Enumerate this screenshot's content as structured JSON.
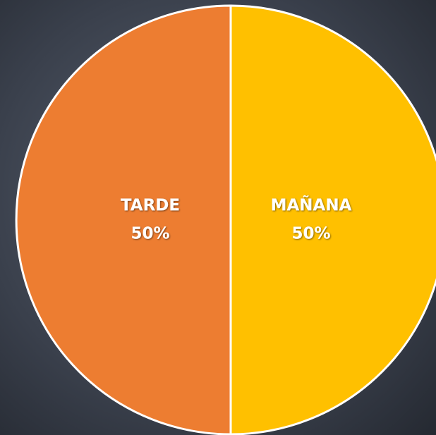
{
  "chart_data": {
    "type": "pie",
    "categories": [
      "MAÑANA",
      "TARDE"
    ],
    "values": [
      50,
      50
    ],
    "value_labels": [
      "50%",
      "50%"
    ],
    "colors": [
      "#ffc000",
      "#ed7d31"
    ]
  }
}
